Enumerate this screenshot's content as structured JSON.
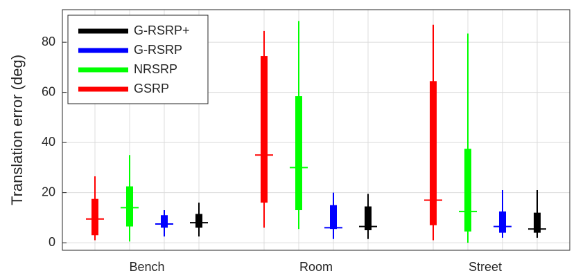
{
  "chart_data": {
    "type": "box",
    "y_label": "Translation error (deg)",
    "categories": [
      "Bench",
      "Room",
      "Street"
    ],
    "ylim": [
      -3,
      93
    ],
    "yticks": [
      0,
      20,
      40,
      60,
      80
    ],
    "grid": true,
    "legend": "upper left",
    "series": [
      {
        "name": "G-RSRP+",
        "color": "#000000",
        "min": [
          2.5,
          1.5,
          2
        ],
        "q1": [
          6,
          5,
          4
        ],
        "median": [
          8,
          6.5,
          5.5
        ],
        "q3": [
          11.5,
          14.5,
          12
        ],
        "max": [
          16,
          19.5,
          21
        ]
      },
      {
        "name": "G-RSRP",
        "color": "#0000ff",
        "min": [
          2.5,
          1.5,
          2
        ],
        "q1": [
          6,
          5.5,
          4
        ],
        "median": [
          7.5,
          6,
          6.5
        ],
        "q3": [
          11,
          15,
          12.5
        ],
        "max": [
          13,
          20,
          21
        ]
      },
      {
        "name": "NRSRP",
        "color": "#00ff00",
        "min": [
          0.5,
          5.5,
          0
        ],
        "q1": [
          6.5,
          13,
          4.5
        ],
        "median": [
          14,
          30,
          12.5
        ],
        "q3": [
          22.5,
          58.5,
          37.5
        ],
        "max": [
          35,
          88.5,
          83.5
        ]
      },
      {
        "name": "GSRP",
        "color": "#ff0000",
        "min": [
          1,
          6,
          1
        ],
        "q1": [
          3,
          16,
          7
        ],
        "median": [
          9.5,
          35,
          17
        ],
        "q3": [
          17.5,
          74.5,
          64.5
        ],
        "max": [
          26.5,
          84.5,
          87
        ]
      }
    ]
  }
}
